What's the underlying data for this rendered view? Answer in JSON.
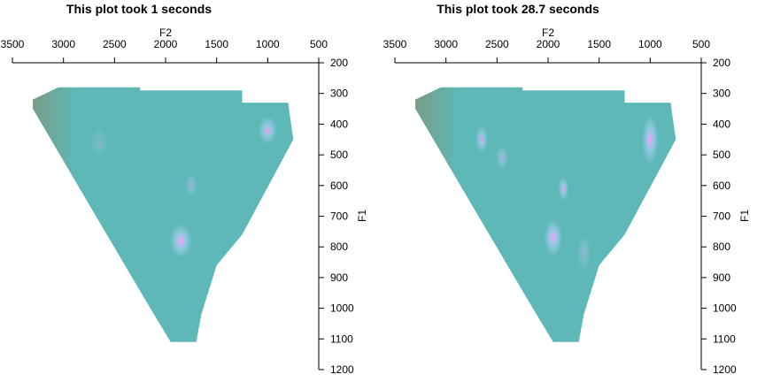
{
  "chart_data": [
    {
      "type": "heatmap",
      "title": "This plot took 1 seconds",
      "xlabel": "F2",
      "ylabel": "F1",
      "xlim": [
        3500,
        500
      ],
      "ylim": [
        200,
        1200
      ],
      "x_reversed": true,
      "y_reversed": true,
      "x_axis_position": "top",
      "y_axis_position": "right",
      "xticks": [
        3500,
        3000,
        2500,
        2000,
        1500,
        1000,
        500
      ],
      "yticks": [
        200,
        300,
        400,
        500,
        600,
        700,
        800,
        900,
        1000,
        1100,
        1200
      ],
      "grid": false,
      "colors": {
        "base": "#5fb8b8",
        "left_edge": "#7a9a80",
        "pale": "#a0d0ee",
        "hotspot": "#ff99ff"
      },
      "region": [
        [
          3050,
          280
        ],
        [
          2250,
          280
        ],
        [
          2250,
          290
        ],
        [
          1250,
          290
        ],
        [
          1250,
          330
        ],
        [
          800,
          330
        ],
        [
          750,
          450
        ],
        [
          1250,
          760
        ],
        [
          1500,
          860
        ],
        [
          1650,
          1020
        ],
        [
          1700,
          1110
        ],
        [
          1950,
          1110
        ],
        [
          2150,
          1000
        ],
        [
          2700,
          690
        ],
        [
          3300,
          350
        ],
        [
          3300,
          320
        ]
      ],
      "hotspots": [
        {
          "x": 1850,
          "y": 780,
          "rx": 110,
          "ry": 55,
          "intensity": 1.0
        },
        {
          "x": 1000,
          "y": 420,
          "rx": 90,
          "ry": 45,
          "intensity": 0.9
        },
        {
          "x": 1750,
          "y": 600,
          "rx": 60,
          "ry": 40,
          "intensity": 0.45
        },
        {
          "x": 2650,
          "y": 460,
          "rx": 80,
          "ry": 50,
          "intensity": 0.3
        }
      ]
    },
    {
      "type": "heatmap",
      "title": "This plot took 28.7 seconds",
      "xlabel": "F2",
      "ylabel": "F1",
      "xlim": [
        3500,
        500
      ],
      "ylim": [
        200,
        1200
      ],
      "x_reversed": true,
      "y_reversed": true,
      "x_axis_position": "top",
      "y_axis_position": "right",
      "xticks": [
        3500,
        3000,
        2500,
        2000,
        1500,
        1000,
        500
      ],
      "yticks": [
        200,
        300,
        400,
        500,
        600,
        700,
        800,
        900,
        1000,
        1100,
        1200
      ],
      "grid": false,
      "colors": {
        "base": "#5fb8b8",
        "left_edge": "#7a9a80",
        "pale": "#a0d0ee",
        "hotspot": "#ff99ff"
      },
      "region": [
        [
          3050,
          280
        ],
        [
          2250,
          280
        ],
        [
          2250,
          290
        ],
        [
          1250,
          290
        ],
        [
          1250,
          330
        ],
        [
          800,
          330
        ],
        [
          750,
          450
        ],
        [
          1250,
          760
        ],
        [
          1500,
          860
        ],
        [
          1650,
          1020
        ],
        [
          1700,
          1110
        ],
        [
          1950,
          1110
        ],
        [
          2150,
          1000
        ],
        [
          2700,
          690
        ],
        [
          3300,
          350
        ],
        [
          3300,
          320
        ]
      ],
      "hotspots": [
        {
          "x": 1950,
          "y": 770,
          "rx": 90,
          "ry": 60,
          "intensity": 1.0
        },
        {
          "x": 1000,
          "y": 450,
          "rx": 80,
          "ry": 80,
          "intensity": 1.0
        },
        {
          "x": 1850,
          "y": 610,
          "rx": 50,
          "ry": 40,
          "intensity": 0.9
        },
        {
          "x": 2650,
          "y": 450,
          "rx": 60,
          "ry": 45,
          "intensity": 0.85
        },
        {
          "x": 2450,
          "y": 510,
          "rx": 60,
          "ry": 40,
          "intensity": 0.6
        },
        {
          "x": 1650,
          "y": 820,
          "rx": 70,
          "ry": 60,
          "intensity": 0.4
        }
      ]
    }
  ]
}
